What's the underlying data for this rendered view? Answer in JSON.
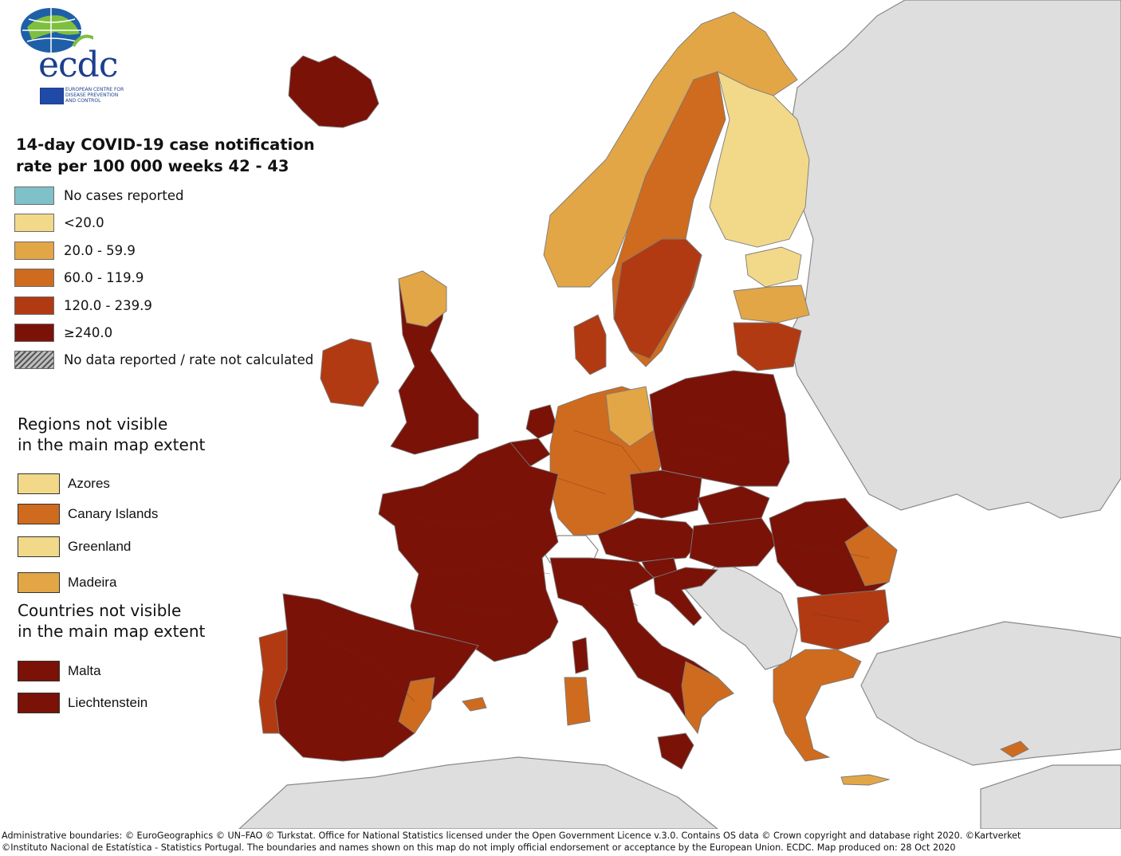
{
  "logo": {
    "wordmark": "ecdc",
    "subtitle_lines": [
      "EUROPEAN CENTRE FOR",
      "DISEASE PREVENTION",
      "AND CONTROL"
    ]
  },
  "title": {
    "line1": "14-day COVID-19 case notification",
    "line2": "rate per 100 000 weeks 42 - 43"
  },
  "colors": {
    "sea": "#ffffff",
    "non_eu_land": "#dedede",
    "border": "#8a8a8a",
    "no_cases": "#7fc1c9",
    "lt20": "#f2d98a",
    "r20_60": "#e3a646",
    "r60_120": "#cf6b1e",
    "r120_240": "#b13a12",
    "ge240": "#7a1208"
  },
  "legend": {
    "items": [
      {
        "key": "no_cases",
        "label": "No cases reported"
      },
      {
        "key": "lt20",
        "label": "<20.0"
      },
      {
        "key": "r20_60",
        "label": "20.0 - 59.9"
      },
      {
        "key": "r60_120",
        "label": "60.0 - 119.9"
      },
      {
        "key": "r120_240",
        "label": "120.0 - 239.9"
      },
      {
        "key": "ge240",
        "label": "≥240.0"
      },
      {
        "key": "no_data",
        "label": "No data reported / rate not calculated"
      }
    ]
  },
  "regions_not_visible": {
    "heading_line1": "Regions not visible",
    "heading_line2": "in the main map extent",
    "items": [
      {
        "label": "Azores",
        "class": "lt20"
      },
      {
        "label": "Canary Islands",
        "class": "r60_120"
      },
      {
        "label": "Greenland",
        "class": "lt20"
      },
      {
        "label": "Madeira",
        "class": "r20_60"
      }
    ]
  },
  "countries_not_visible": {
    "heading_line1": "Countries not visible",
    "heading_line2": "in the main map extent",
    "items": [
      {
        "label": "Malta",
        "class": "ge240"
      },
      {
        "label": "Liechtenstein",
        "class": "ge240"
      }
    ]
  },
  "map": {
    "countries": [
      {
        "name": "Iceland",
        "class": "ge240"
      },
      {
        "name": "Norway",
        "class": "r20_60"
      },
      {
        "name": "Sweden",
        "class": "r60_120"
      },
      {
        "name": "Finland",
        "class": "lt20"
      },
      {
        "name": "Estonia",
        "class": "lt20"
      },
      {
        "name": "Latvia",
        "class": "r20_60"
      },
      {
        "name": "Lithuania",
        "class": "r120_240"
      },
      {
        "name": "Denmark",
        "class": "r120_240"
      },
      {
        "name": "Ireland",
        "class": "r120_240"
      },
      {
        "name": "United Kingdom",
        "class": "ge240"
      },
      {
        "name": "Netherlands",
        "class": "ge240"
      },
      {
        "name": "Belgium",
        "class": "ge240"
      },
      {
        "name": "Luxembourg",
        "class": "ge240"
      },
      {
        "name": "France",
        "class": "ge240"
      },
      {
        "name": "Germany",
        "class": "r60_120"
      },
      {
        "name": "Poland",
        "class": "ge240"
      },
      {
        "name": "Czechia",
        "class": "ge240"
      },
      {
        "name": "Slovakia",
        "class": "ge240"
      },
      {
        "name": "Austria",
        "class": "ge240"
      },
      {
        "name": "Hungary",
        "class": "ge240"
      },
      {
        "name": "Slovenia",
        "class": "ge240"
      },
      {
        "name": "Croatia",
        "class": "ge240"
      },
      {
        "name": "Romania",
        "class": "ge240"
      },
      {
        "name": "Bulgaria",
        "class": "r120_240"
      },
      {
        "name": "Greece",
        "class": "r60_120"
      },
      {
        "name": "Cyprus",
        "class": "r60_120"
      },
      {
        "name": "Italy",
        "class": "ge240"
      },
      {
        "name": "Spain",
        "class": "ge240"
      },
      {
        "name": "Portugal",
        "class": "r120_240"
      },
      {
        "name": "Switzerland",
        "class": "no_data_white"
      },
      {
        "name": "Corsica",
        "class": "ge240"
      },
      {
        "name": "Sardinia",
        "class": "r60_120"
      },
      {
        "name": "Sicily",
        "class": "ge240"
      }
    ]
  },
  "footer": {
    "line1": "Administrative boundaries: © EuroGeographics © UN–FAO © Turkstat. Office for National Statistics licensed under the Open Government Licence v.3.0. Contains OS data © Crown copyright and database right 2020. ©Kartverket",
    "line2": "©Instituto Nacional de Estatística - Statistics Portugal. The boundaries and names shown on this map do not imply official endorsement or acceptance by the European Union. ECDC. Map produced on: 28 Oct 2020"
  }
}
